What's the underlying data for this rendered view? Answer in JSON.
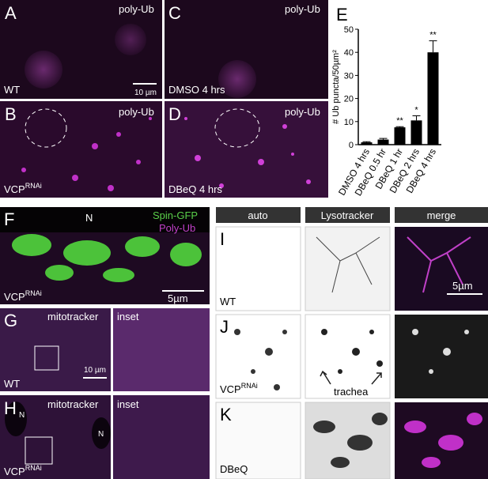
{
  "panels": {
    "A": {
      "label": "A",
      "stain": "poly-Ub",
      "condition": "WT",
      "scale": "10 µm"
    },
    "B": {
      "label": "B",
      "stain": "poly-Ub",
      "condition": "VCP",
      "condition_sup": "RNAi"
    },
    "C": {
      "label": "C",
      "stain": "poly-Ub",
      "condition": "DMSO 4 hrs"
    },
    "D": {
      "label": "D",
      "stain": "poly-Ub",
      "condition": "DBeQ 4 hrs"
    },
    "F": {
      "label": "F",
      "nucleus": "N",
      "stain1": "Spin-GFP",
      "stain2": "Poly-Ub",
      "condition": "VCP",
      "condition_sup": "RNAi",
      "scale": "5µm"
    },
    "G": {
      "label": "G",
      "stain": "mitotracker",
      "inset": "inset",
      "condition": "WT",
      "scale": "10 µm"
    },
    "H": {
      "label": "H",
      "nucleus": "N",
      "stain": "mitotracker",
      "inset": "inset",
      "condition": "VCP",
      "condition_sup": "RNAi"
    },
    "headers": [
      "auto",
      "Lysotracker",
      "merge"
    ],
    "I": {
      "label": "I",
      "condition": "WT",
      "scale": "5µm"
    },
    "J": {
      "label": "J",
      "condition": "VCP",
      "condition_sup": "RNAi",
      "annotation": "trachea"
    },
    "K": {
      "label": "K",
      "condition": "DBeQ"
    }
  },
  "chart_data": {
    "type": "bar",
    "panel_label": "E",
    "ylabel": "# Ub puncta/50µm²",
    "categories": [
      "DMSO 4 hrs",
      "DBeQ 0.5 hr",
      "DBeQ 1 hr",
      "DBeQ 2 hrs",
      "DBeQ 4 hrs"
    ],
    "values": [
      1,
      2.2,
      7.5,
      10.5,
      40
    ],
    "errors": [
      0.3,
      0.5,
      0.3,
      2,
      5
    ],
    "significance": [
      null,
      null,
      "**",
      "*",
      "**"
    ],
    "color": "#000000",
    "ylim": [
      0,
      50
    ],
    "yticks": [
      0,
      10,
      20,
      30,
      40,
      50
    ]
  }
}
